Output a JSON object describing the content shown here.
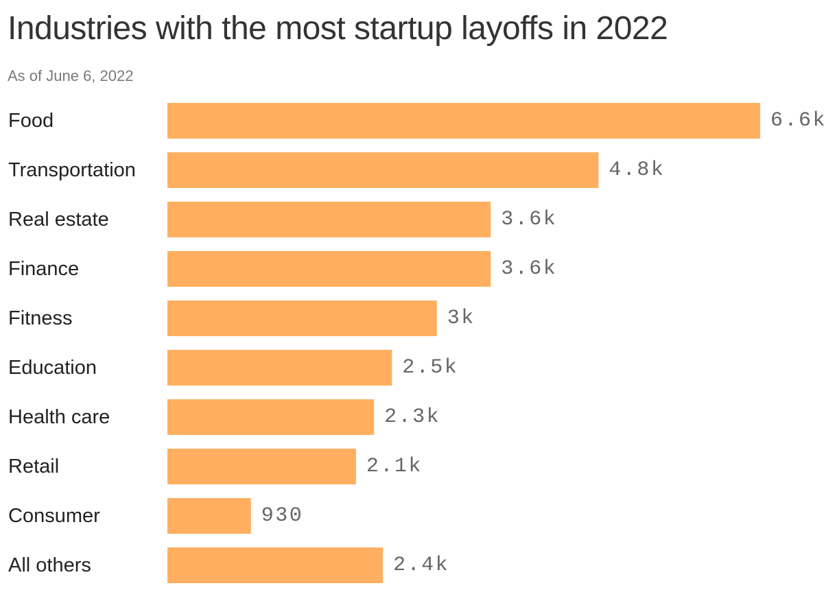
{
  "title": "Industries with the most startup layoffs in 2022",
  "subtitle": "As of June 6, 2022",
  "colors": {
    "bar": "#FFAF5F",
    "title": "#333333",
    "subtitle": "#7A7A7A",
    "category_text": "#222222",
    "value_text": "#666666"
  },
  "chart_data": {
    "type": "bar",
    "orientation": "horizontal",
    "categories": [
      "Food",
      "Transportation",
      "Real estate",
      "Finance",
      "Fitness",
      "Education",
      "Health care",
      "Retail",
      "Consumer",
      "All others"
    ],
    "values": [
      6600,
      4800,
      3600,
      3600,
      3000,
      2500,
      2300,
      2100,
      930,
      2400
    ],
    "value_labels": [
      "6.6k",
      "4.8k",
      "3.6k",
      "3.6k",
      "3k",
      "2.5k",
      "2.3k",
      "2.1k",
      "930",
      "2.4k"
    ],
    "title": "Industries with the most startup layoffs in 2022",
    "subtitle": "As of June 6, 2022",
    "xlabel": "",
    "ylabel": "",
    "xlim": [
      0,
      6600
    ],
    "grid": false,
    "legend": "none"
  }
}
